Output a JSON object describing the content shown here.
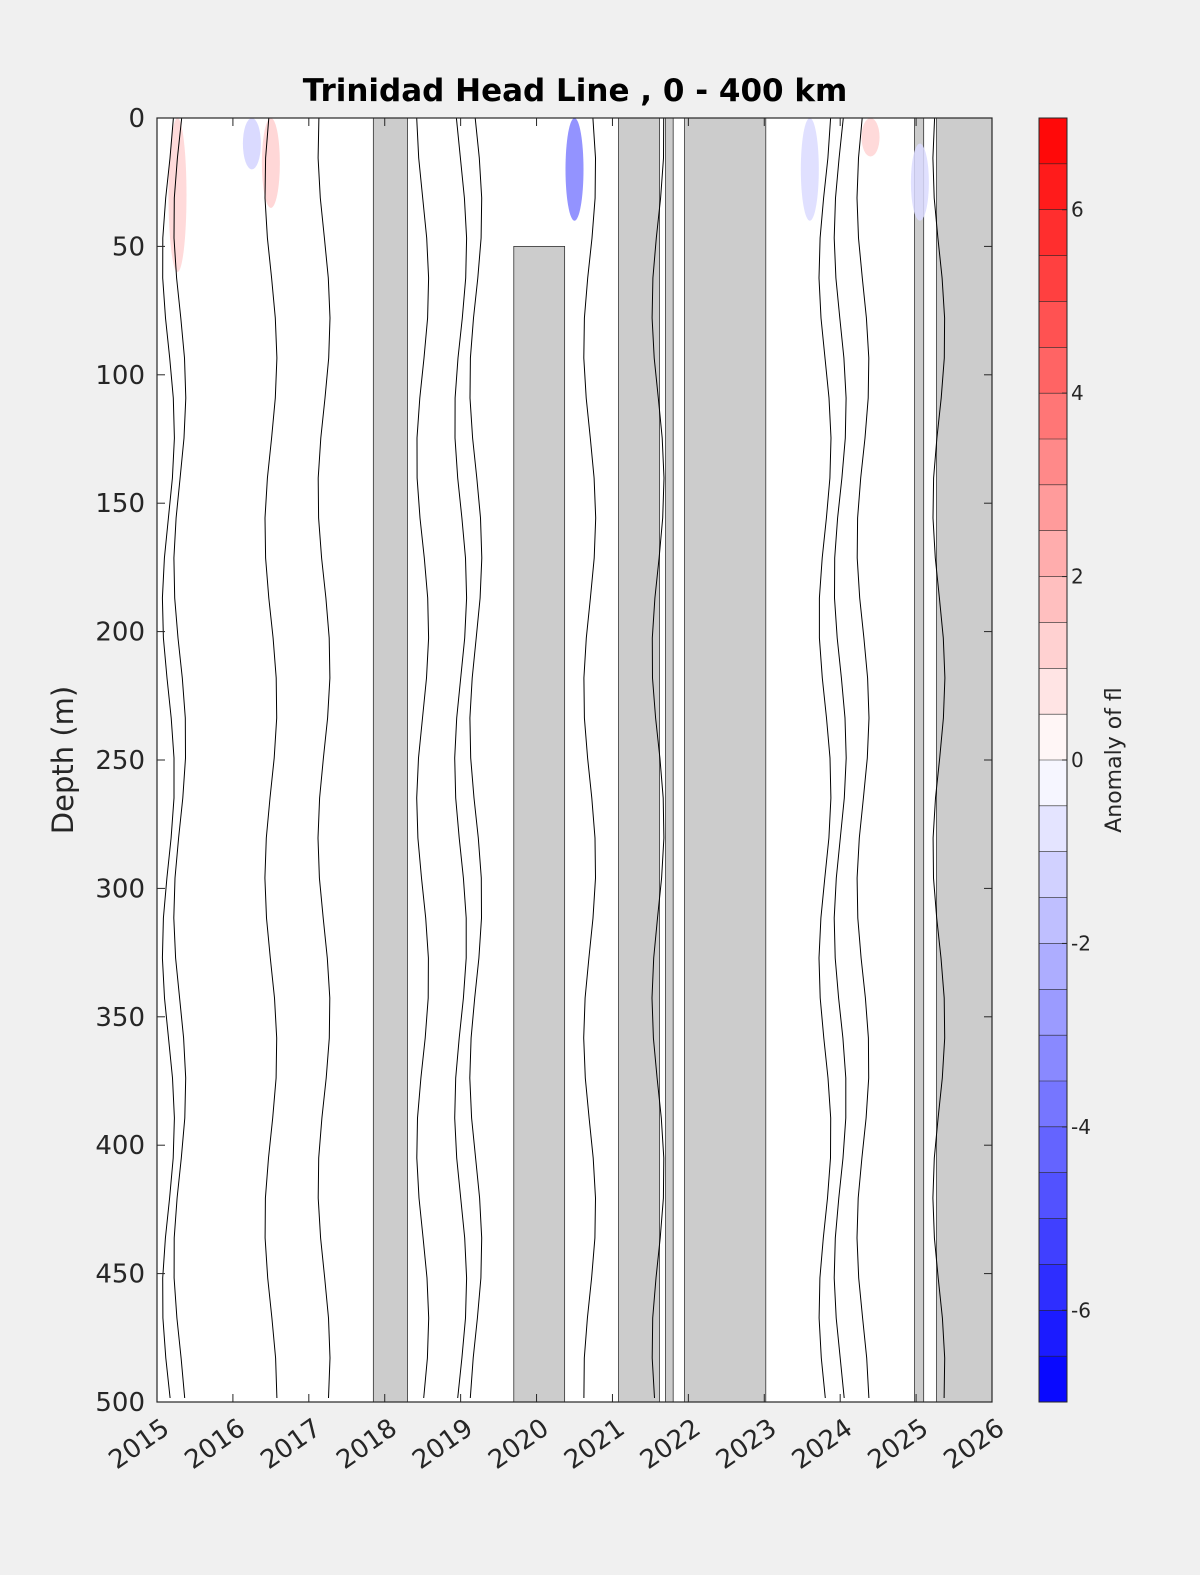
{
  "chart_data": {
    "type": "heatmap",
    "title": "Trinidad Head Line , 0 - 400 km",
    "ylabel": "Depth (m)",
    "xlabel": "",
    "x_ticks": [
      "2015",
      "2016",
      "2017",
      "2018",
      "2019",
      "2020",
      "2021",
      "2022",
      "2023",
      "2024",
      "2025",
      "2026"
    ],
    "xlim": [
      2015,
      2026
    ],
    "y_ticks": [
      "0",
      "50",
      "100",
      "150",
      "200",
      "250",
      "300",
      "350",
      "400",
      "450",
      "500"
    ],
    "ylim": [
      0,
      500
    ],
    "y_reversed": true,
    "colorbar": {
      "label": "Anomaly of fl",
      "range": [
        -7,
        7
      ],
      "ticks": [
        "6",
        "4",
        "2",
        "0",
        "-2",
        "-4",
        "-6"
      ],
      "tick_values": [
        6,
        4,
        2,
        0,
        -2,
        -4,
        -6
      ],
      "levels": 28,
      "low_color": "#0000ff",
      "mid_color": "#ffffff",
      "high_color": "#ff0000"
    },
    "no_data_color": "#cccccc",
    "no_data_periods": [
      {
        "x0": 2017.85,
        "x1": 2018.3,
        "y0": 0,
        "y1": 500
      },
      {
        "x0": 2019.7,
        "x1": 2020.37,
        "y0": 50,
        "y1": 500
      },
      {
        "x0": 2021.08,
        "x1": 2021.62,
        "y0": 0,
        "y1": 500
      },
      {
        "x0": 2021.7,
        "x1": 2021.8,
        "y0": 0,
        "y1": 500
      },
      {
        "x0": 2021.95,
        "x1": 2023.02,
        "y0": 0,
        "y1": 500
      },
      {
        "x0": 2024.98,
        "x1": 2025.1,
        "y0": 0,
        "y1": 500
      },
      {
        "x0": 2025.27,
        "x1": 2026.0,
        "y0": 0,
        "y1": 500
      }
    ],
    "anomaly_patches": [
      {
        "x": 2015.27,
        "depth_top": 0,
        "depth_bottom": 60,
        "value": 1.2
      },
      {
        "x": 2016.25,
        "depth_top": 0,
        "depth_bottom": 20,
        "value": -1.2
      },
      {
        "x": 2016.5,
        "depth_top": 0,
        "depth_bottom": 35,
        "value": 1.3
      },
      {
        "x": 2020.5,
        "depth_top": 0,
        "depth_bottom": 40,
        "value": -3.5
      },
      {
        "x": 2023.6,
        "depth_top": 0,
        "depth_bottom": 40,
        "value": -1.0
      },
      {
        "x": 2024.4,
        "depth_top": 0,
        "depth_bottom": 15,
        "value": 1.2
      },
      {
        "x": 2025.05,
        "depth_top": 10,
        "depth_bottom": 40,
        "value": -1.0
      }
    ],
    "zero_contours_x": [
      2015.15,
      2015.3,
      2016.5,
      2017.2,
      2018.5,
      2019.0,
      2019.2,
      2020.7,
      2021.6,
      2023.8,
      2024.0,
      2024.3,
      2025.3
    ]
  }
}
